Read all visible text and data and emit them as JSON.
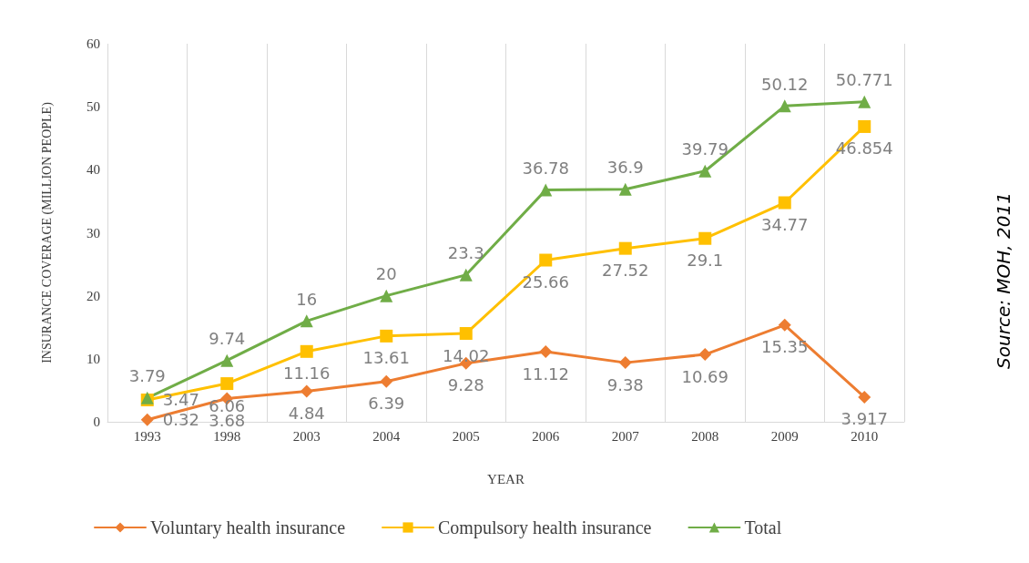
{
  "chart_data": {
    "type": "line",
    "xlabel": "YEAR",
    "ylabel": "INSURANCE COVERAGE (MILLION PEOPLE)",
    "categories": [
      "1993",
      "1998",
      "2003",
      "2004",
      "2005",
      "2006",
      "2007",
      "2008",
      "2009",
      "2010"
    ],
    "series": [
      {
        "name": "Voluntary health insurance",
        "color": "#ed7d31",
        "marker": "diamond",
        "values": [
          0.32,
          3.68,
          4.84,
          6.39,
          9.28,
          11.12,
          9.38,
          10.69,
          15.35,
          3.917
        ]
      },
      {
        "name": "Compulsory health insurance",
        "color": "#ffc000",
        "marker": "square",
        "values": [
          3.47,
          6.06,
          11.16,
          13.61,
          14.02,
          25.66,
          27.52,
          29.1,
          34.77,
          46.854
        ]
      },
      {
        "name": "Total",
        "color": "#70ad47",
        "marker": "triangle",
        "values": [
          3.79,
          9.74,
          16,
          20,
          23.3,
          36.78,
          36.9,
          39.79,
          50.12,
          50.771
        ]
      }
    ],
    "ylim": [
      0,
      60
    ],
    "yticks": [
      0,
      10,
      20,
      30,
      40,
      50,
      60
    ],
    "grid": "x",
    "legend": "bottom",
    "data_labels": true,
    "line_style": "solid",
    "annotations": [
      "Source: MOH, 2011"
    ]
  }
}
